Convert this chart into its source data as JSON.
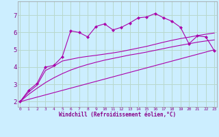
{
  "xlabel": "Windchill (Refroidissement éolien,°C)",
  "bg_color": "#cceeff",
  "grid_color": "#b8d8cc",
  "line_color": "#aa00aa",
  "x_ticks": [
    0,
    1,
    2,
    3,
    4,
    5,
    6,
    7,
    8,
    9,
    10,
    11,
    12,
    13,
    14,
    15,
    16,
    17,
    18,
    19,
    20,
    21,
    22,
    23
  ],
  "y_ticks": [
    2,
    3,
    4,
    5,
    6,
    7
  ],
  "xlim": [
    -0.3,
    23.3
  ],
  "ylim": [
    1.7,
    7.8
  ],
  "series1_x": [
    0,
    1,
    2,
    3,
    4,
    5,
    6,
    7,
    8,
    9,
    10,
    11,
    12,
    13,
    14,
    15,
    16,
    17,
    18,
    19,
    20,
    21,
    22,
    23
  ],
  "series1_y": [
    2.0,
    2.65,
    3.05,
    4.0,
    4.1,
    4.6,
    6.1,
    6.0,
    5.75,
    6.35,
    6.5,
    6.15,
    6.3,
    6.55,
    6.85,
    6.9,
    7.1,
    6.85,
    6.65,
    6.3,
    5.35,
    5.8,
    5.75,
    4.95
  ],
  "series2_x": [
    0,
    1,
    2,
    3,
    4,
    5,
    6,
    7,
    8,
    9,
    10,
    11,
    12,
    13,
    14,
    15,
    16,
    17,
    18,
    19,
    20,
    21,
    22,
    23
  ],
  "series2_y": [
    2.0,
    2.55,
    2.95,
    3.8,
    4.05,
    4.35,
    4.45,
    4.55,
    4.62,
    4.68,
    4.75,
    4.82,
    4.9,
    5.0,
    5.1,
    5.2,
    5.32,
    5.44,
    5.55,
    5.65,
    5.73,
    5.82,
    5.9,
    5.97
  ],
  "series3_x": [
    0,
    1,
    2,
    3,
    4,
    5,
    6,
    7,
    8,
    9,
    10,
    11,
    12,
    13,
    14,
    15,
    16,
    17,
    18,
    19,
    20,
    21,
    22,
    23
  ],
  "series3_y": [
    2.0,
    2.42,
    2.77,
    3.1,
    3.38,
    3.62,
    3.83,
    4.0,
    4.15,
    4.28,
    4.4,
    4.5,
    4.6,
    4.7,
    4.78,
    4.87,
    4.97,
    5.07,
    5.17,
    5.26,
    5.35,
    5.44,
    5.51,
    5.57
  ],
  "series4_x": [
    0,
    23
  ],
  "series4_y": [
    2.0,
    5.0
  ]
}
